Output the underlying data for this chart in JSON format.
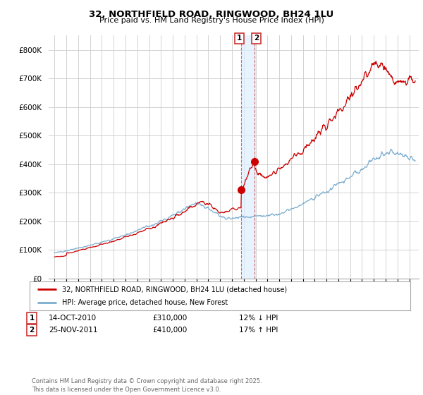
{
  "title": "32, NORTHFIELD ROAD, RINGWOOD, BH24 1LU",
  "subtitle": "Price paid vs. HM Land Registry's House Price Index (HPI)",
  "legend_label_red": "32, NORTHFIELD ROAD, RINGWOOD, BH24 1LU (detached house)",
  "legend_label_blue": "HPI: Average price, detached house, New Forest",
  "red_color": "#cc0000",
  "blue_color": "#7aadcf",
  "transaction1_date": "14-OCT-2010",
  "transaction1_price": "£310,000",
  "transaction1_hpi": "12% ↓ HPI",
  "transaction2_date": "25-NOV-2011",
  "transaction2_price": "£410,000",
  "transaction2_hpi": "17% ↑ HPI",
  "footer": "Contains HM Land Registry data © Crown copyright and database right 2025.\nThis data is licensed under the Open Government Licence v3.0.",
  "ylim": [
    0,
    850000
  ],
  "yticks": [
    0,
    100000,
    200000,
    300000,
    400000,
    500000,
    600000,
    700000,
    800000
  ],
  "ytick_labels": [
    "£0",
    "£100K",
    "£200K",
    "£300K",
    "£400K",
    "£500K",
    "£600K",
    "£700K",
    "£800K"
  ],
  "background_color": "#ffffff",
  "grid_color": "#cccccc",
  "marker1_x": 2010.79,
  "marker1_y": 310000,
  "marker2_x": 2011.9,
  "marker2_y": 410000,
  "xlim_start": 1994.5,
  "xlim_end": 2025.8
}
